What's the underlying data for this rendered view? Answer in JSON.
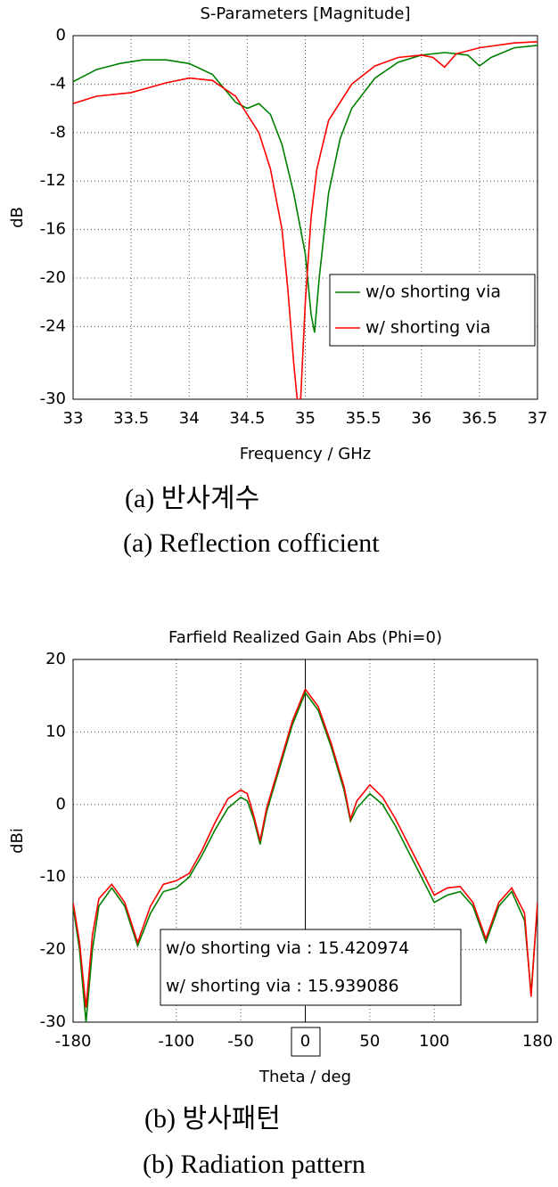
{
  "chart_data": [
    {
      "type": "line",
      "title": "S-Parameters [Magnitude]",
      "x_label": "Frequency / GHz",
      "y_label": "dB",
      "xlim": [
        33,
        37
      ],
      "xticks": [
        33,
        33.5,
        34,
        34.5,
        35,
        35.5,
        36,
        36.5,
        37
      ],
      "ylim": [
        -30,
        0
      ],
      "yticks": [
        0,
        -4,
        -8,
        -12,
        -16,
        -20,
        -24,
        -30
      ],
      "grid": true,
      "legend": "lower right",
      "series": [
        {
          "name": "w/o shorting via",
          "color": "#008000",
          "x": [
            33,
            33.2,
            33.4,
            33.6,
            33.8,
            34.0,
            34.2,
            34.4,
            34.5,
            34.6,
            34.7,
            34.8,
            34.9,
            35.0,
            35.05,
            35.08,
            35.12,
            35.2,
            35.3,
            35.4,
            35.6,
            35.8,
            36.0,
            36.2,
            36.4,
            36.5,
            36.6,
            36.8,
            37
          ],
          "values": [
            -3.8,
            -2.8,
            -2.3,
            -2.0,
            -2.0,
            -2.3,
            -3.2,
            -5.5,
            -6.0,
            -5.6,
            -6.5,
            -9,
            -13,
            -18,
            -23,
            -24.5,
            -20,
            -13,
            -8.5,
            -6,
            -3.5,
            -2.2,
            -1.6,
            -1.4,
            -1.6,
            -2.5,
            -1.8,
            -1.0,
            -0.8
          ]
        },
        {
          "name": "w/ shorting via",
          "color": "#ff0000",
          "x": [
            33,
            33.2,
            33.5,
            33.8,
            34.0,
            34.2,
            34.4,
            34.6,
            34.7,
            34.8,
            34.85,
            34.9,
            34.93,
            34.96,
            35.0,
            35.05,
            35.1,
            35.2,
            35.4,
            35.6,
            35.8,
            36.0,
            36.1,
            36.2,
            36.3,
            36.5,
            36.8,
            37
          ],
          "values": [
            -5.6,
            -5.0,
            -4.7,
            -3.9,
            -3.5,
            -3.7,
            -5.0,
            -8,
            -11,
            -16,
            -21,
            -27,
            -30,
            -30,
            -22,
            -15,
            -11,
            -7,
            -4,
            -2.5,
            -1.8,
            -1.6,
            -1.8,
            -2.6,
            -1.5,
            -1.0,
            -0.6,
            -0.5
          ]
        }
      ]
    },
    {
      "type": "line",
      "title": "Farfield Realized Gain Abs (Phi=0)",
      "x_label": "Theta / deg",
      "y_label": "dBi",
      "xlim": [
        -180,
        180
      ],
      "xticks": [
        -180,
        -100,
        -50,
        0,
        50,
        100,
        180
      ],
      "ylim": [
        -30,
        20
      ],
      "yticks": [
        20,
        10,
        0,
        -10,
        -20,
        -30
      ],
      "grid": true,
      "legend": "lower center",
      "series": [
        {
          "name": "w/o shorting via : 15.420974",
          "color": "#008000",
          "x": [
            -180,
            -175,
            -170,
            -165,
            -160,
            -150,
            -140,
            -130,
            -120,
            -110,
            -100,
            -90,
            -80,
            -70,
            -60,
            -50,
            -45,
            -40,
            -35,
            -30,
            -20,
            -10,
            0,
            10,
            20,
            30,
            35,
            40,
            50,
            60,
            70,
            80,
            90,
            100,
            110,
            120,
            130,
            140,
            150,
            160,
            170,
            175,
            180
          ],
          "values": [
            -14,
            -20,
            -30,
            -20,
            -14,
            -11.5,
            -14,
            -19.5,
            -15,
            -12,
            -11.5,
            -10,
            -7,
            -3.5,
            -0.5,
            1,
            0.5,
            -2,
            -5.5,
            -1,
            5,
            11,
            15.4,
            13,
            8,
            2,
            -2.3,
            -0.5,
            1.5,
            0,
            -3,
            -6.5,
            -10,
            -13.5,
            -12.5,
            -12,
            -14,
            -19,
            -14,
            -12,
            -16,
            -26,
            -14
          ]
        },
        {
          "name": "w/ shorting via : 15.939086",
          "color": "#ff0000",
          "x": [
            -180,
            -175,
            -170,
            -165,
            -160,
            -150,
            -140,
            -130,
            -120,
            -110,
            -100,
            -90,
            -80,
            -70,
            -60,
            -50,
            -45,
            -40,
            -35,
            -30,
            -20,
            -10,
            0,
            10,
            20,
            30,
            35,
            40,
            50,
            60,
            70,
            80,
            90,
            100,
            110,
            120,
            130,
            140,
            150,
            160,
            170,
            175,
            180
          ],
          "values": [
            -13.5,
            -19,
            -28,
            -18,
            -13,
            -11,
            -13.5,
            -19,
            -14,
            -11,
            -10.5,
            -9.5,
            -6.3,
            -2.5,
            0.8,
            2,
            1.5,
            -1.5,
            -5,
            -0.5,
            5.5,
            11.5,
            15.9,
            13.5,
            8.5,
            2.5,
            -2,
            0.5,
            2.7,
            1,
            -2,
            -5.5,
            -9,
            -12.5,
            -11.5,
            -11.3,
            -13.5,
            -18.5,
            -13.5,
            -11.5,
            -15,
            -26.5,
            -13.5
          ]
        }
      ]
    }
  ],
  "captions": [
    "(a) 반사계수",
    "(a) Reflection cofficient",
    "(b) 방사패턴",
    "(b) Radiation pattern"
  ]
}
